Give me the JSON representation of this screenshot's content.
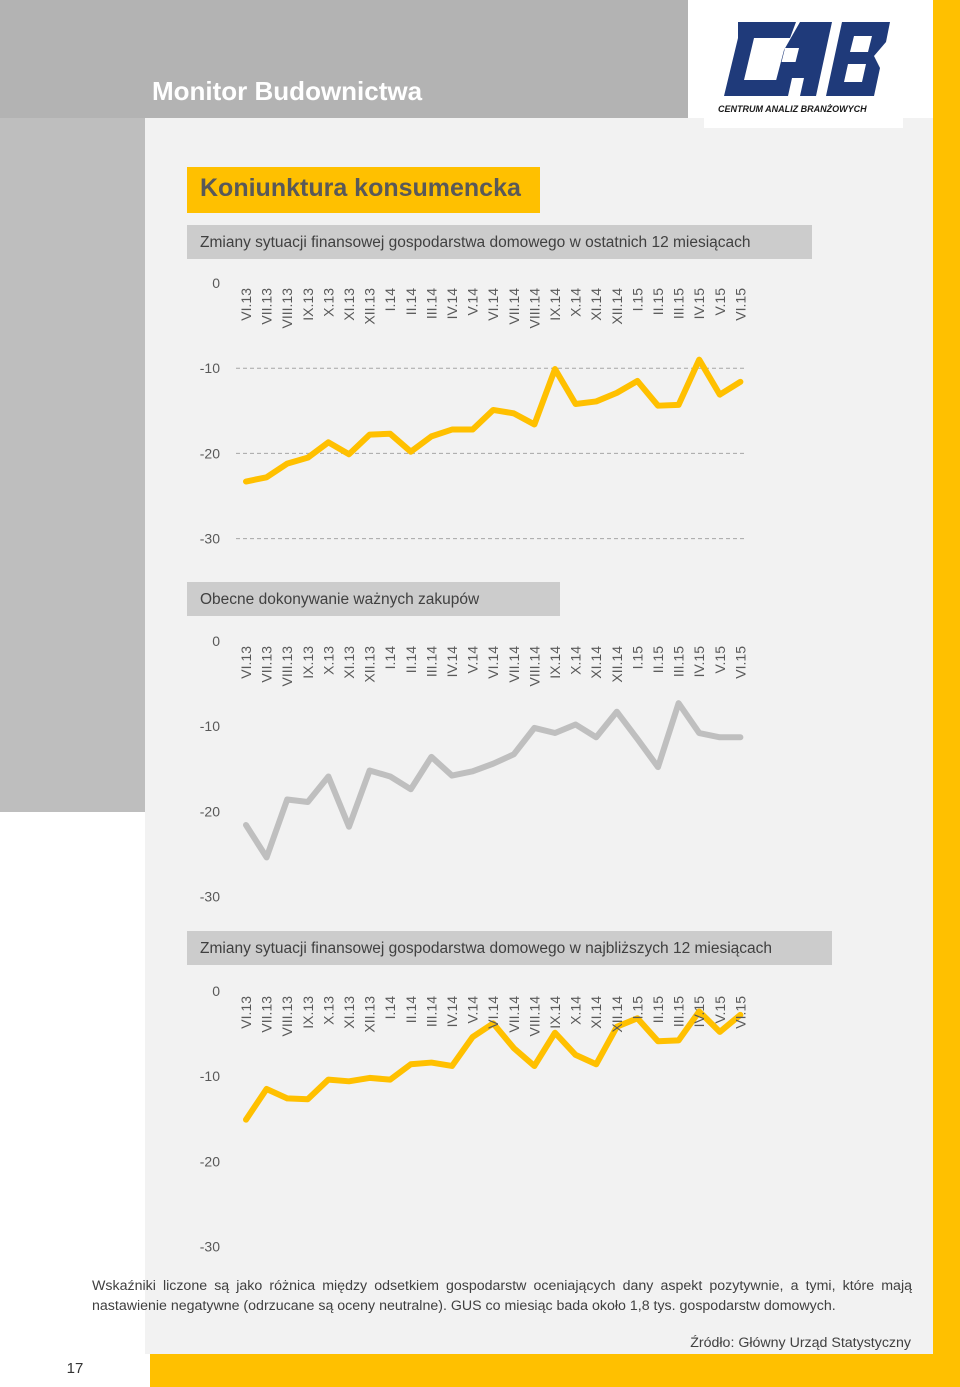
{
  "header": {
    "title": "Monitor Budownictwa",
    "logo_text": "CENTRUM ANALIZ BRANŻOWYCH",
    "logo_mark": "CAB"
  },
  "section": {
    "title": "Koniunktura konsumencka"
  },
  "colors": {
    "yellow": "#ffc000",
    "gray": "#bfbfbf",
    "panel": "#f2f2f2",
    "title_box": "#cccccc"
  },
  "chart_data": [
    {
      "type": "line",
      "title": "Zmiany sytuacji finansowej gospodarstwa domowego w ostatnich 12 miesiącach",
      "categories": [
        "VI.13",
        "VII.13",
        "VIII.13",
        "IX.13",
        "X.13",
        "XI.13",
        "XII.13",
        "I.14",
        "II.14",
        "III.14",
        "IV.14",
        "V.14",
        "VI.14",
        "VII.14",
        "VIII.14",
        "IX.14",
        "X.14",
        "XI.14",
        "XII.14",
        "I.15",
        "II.15",
        "III.15",
        "IV.15",
        "V.15",
        "VI.15"
      ],
      "values": [
        -23.3,
        -22.8,
        -21.2,
        -20.5,
        -18.7,
        -20.1,
        -17.8,
        -17.7,
        -19.8,
        -18.0,
        -17.2,
        -17.2,
        -14.9,
        -15.3,
        -16.6,
        -10.1,
        -14.2,
        -13.9,
        -12.9,
        -11.5,
        -14.4,
        -14.3,
        -9.0,
        -13.1,
        -11.6
      ],
      "ylim": [
        -30,
        0
      ],
      "yticks": [
        0,
        -10,
        -20,
        -30
      ],
      "color": "#ffc000",
      "grid": true
    },
    {
      "type": "line",
      "title": "Obecne dokonywanie ważnych zakupów",
      "categories": [
        "VI.13",
        "VII.13",
        "VIII.13",
        "IX.13",
        "X.13",
        "XI.13",
        "XII.13",
        "I.14",
        "II.14",
        "III.14",
        "IV.14",
        "V.14",
        "VI.14",
        "VII.14",
        "VIII.14",
        "IX.14",
        "X.14",
        "XI.14",
        "XII.14",
        "I.15",
        "II.15",
        "III.15",
        "IV.15",
        "V.15",
        "VI.15"
      ],
      "values": [
        -21.6,
        -25.4,
        -18.6,
        -18.9,
        -15.9,
        -21.8,
        -15.2,
        -15.9,
        -17.4,
        -13.6,
        -15.8,
        -15.3,
        -14.4,
        -13.3,
        -10.2,
        -10.8,
        -9.8,
        -11.3,
        -8.3,
        -11.5,
        -14.8,
        -7.3,
        -10.8,
        -11.3,
        -11.3
      ],
      "ylim": [
        -30,
        0
      ],
      "yticks": [
        0,
        -10,
        -20,
        -30
      ],
      "color": "#bfbfbf",
      "grid": false
    },
    {
      "type": "line",
      "title": "Zmiany sytuacji finansowej gospodarstwa domowego w najbliższych 12 miesiącach",
      "categories": [
        "VI.13",
        "VII.13",
        "VIII.13",
        "IX.13",
        "X.13",
        "XI.13",
        "XII.13",
        "I.14",
        "II.14",
        "III.14",
        "IV.14",
        "V.14",
        "VI.14",
        "VII.14",
        "VIII.14",
        "IX.14",
        "X.14",
        "XI.14",
        "XII.14",
        "I.15",
        "II.15",
        "III.15",
        "IV.15",
        "V.15",
        "VI.15"
      ],
      "values": [
        -15.1,
        -11.5,
        -12.6,
        -12.7,
        -10.4,
        -10.6,
        -10.2,
        -10.4,
        -8.6,
        -8.4,
        -8.8,
        -5.4,
        -3.8,
        -6.7,
        -8.8,
        -4.9,
        -7.5,
        -8.6,
        -4.2,
        -3.2,
        -5.9,
        -5.8,
        -2.4,
        -4.8,
        -2.8
      ],
      "ylim": [
        -30,
        0
      ],
      "yticks": [
        0,
        -10,
        -20,
        -30
      ],
      "color": "#ffc000",
      "grid": false
    }
  ],
  "footnote": "Wskaźniki liczone są jako różnica między odsetkiem gospodarstw oceniających dany aspekt pozytywnie, a tymi, które mają nastawienie negatywne (odrzucane są oceny neutralne). GUS co miesiąc bada około 1,8 tys. gospodarstw domowych.",
  "source": "Źródło: Główny Urząd Statystyczny",
  "page_number": "17"
}
